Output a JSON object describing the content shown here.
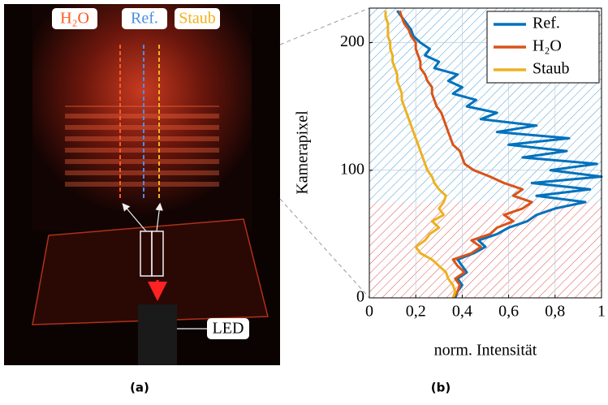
{
  "photo": {
    "labels": [
      "H₂O",
      "Ref.",
      "Staub"
    ],
    "label_colors": [
      "#ff5a1e",
      "#4a8fe0",
      "#f2b21a"
    ],
    "led": "LED",
    "caption": "(a)"
  },
  "chart_data": {
    "type": "line",
    "caption": "(b)",
    "xlabel": "norm. Intensität",
    "ylabel": "Kamerapixel",
    "y": [
      0,
      5,
      10,
      15,
      20,
      25,
      30,
      35,
      40,
      45,
      50,
      55,
      60,
      65,
      70,
      75,
      80,
      85,
      90,
      95,
      100,
      105,
      110,
      115,
      120,
      125,
      130,
      135,
      140,
      145,
      150,
      155,
      160,
      165,
      170,
      175,
      180,
      185,
      190,
      195,
      200,
      205,
      210,
      215,
      220,
      225
    ],
    "series": [
      {
        "name": "Ref.",
        "color": "#0072bd",
        "values": [
          0.37,
          0.38,
          0.4,
          0.38,
          0.42,
          0.4,
          0.38,
          0.45,
          0.5,
          0.47,
          0.55,
          0.6,
          0.68,
          0.72,
          0.8,
          0.93,
          0.72,
          0.95,
          0.7,
          1.0,
          0.78,
          0.98,
          0.66,
          0.85,
          0.6,
          0.86,
          0.55,
          0.72,
          0.48,
          0.55,
          0.42,
          0.46,
          0.36,
          0.4,
          0.34,
          0.38,
          0.28,
          0.3,
          0.24,
          0.26,
          0.22,
          0.19,
          0.18,
          0.16,
          0.14,
          0.12
        ]
      },
      {
        "name": "H₂O",
        "color": "#d95319",
        "values": [
          0.36,
          0.38,
          0.39,
          0.37,
          0.41,
          0.38,
          0.36,
          0.44,
          0.48,
          0.44,
          0.52,
          0.55,
          0.62,
          0.58,
          0.66,
          0.7,
          0.62,
          0.66,
          0.58,
          0.52,
          0.45,
          0.41,
          0.4,
          0.39,
          0.36,
          0.35,
          0.34,
          0.33,
          0.32,
          0.31,
          0.29,
          0.28,
          0.27,
          0.27,
          0.25,
          0.24,
          0.22,
          0.22,
          0.21,
          0.2,
          0.2,
          0.18,
          0.17,
          0.15,
          0.14,
          0.13
        ]
      },
      {
        "name": "Staub",
        "color": "#edb120",
        "values": [
          0.36,
          0.37,
          0.36,
          0.34,
          0.33,
          0.3,
          0.27,
          0.22,
          0.2,
          0.24,
          0.26,
          0.3,
          0.27,
          0.32,
          0.3,
          0.32,
          0.33,
          0.3,
          0.28,
          0.27,
          0.25,
          0.24,
          0.23,
          0.22,
          0.21,
          0.2,
          0.19,
          0.18,
          0.17,
          0.16,
          0.15,
          0.14,
          0.14,
          0.13,
          0.12,
          0.12,
          0.11,
          0.1,
          0.1,
          0.09,
          0.09,
          0.08,
          0.08,
          0.08,
          0.07,
          0.07
        ]
      }
    ],
    "regions": [
      {
        "from": 0,
        "to": 75,
        "color": "#e05050"
      },
      {
        "from": 75,
        "to": 227,
        "color": "#4a9fd8"
      }
    ],
    "xlim": [
      0,
      1
    ],
    "ylim": [
      0,
      227
    ],
    "xticks": [
      0,
      {
        "value": 0.2,
        "label": "0,2"
      },
      {
        "value": 0.4,
        "label": "0,4"
      },
      {
        "value": 0.6,
        "label": "0,6"
      },
      {
        "value": 0.8,
        "label": "0,8"
      },
      1
    ],
    "yticks": [
      0,
      100,
      200
    ],
    "grid": true,
    "legend": "top-right"
  }
}
